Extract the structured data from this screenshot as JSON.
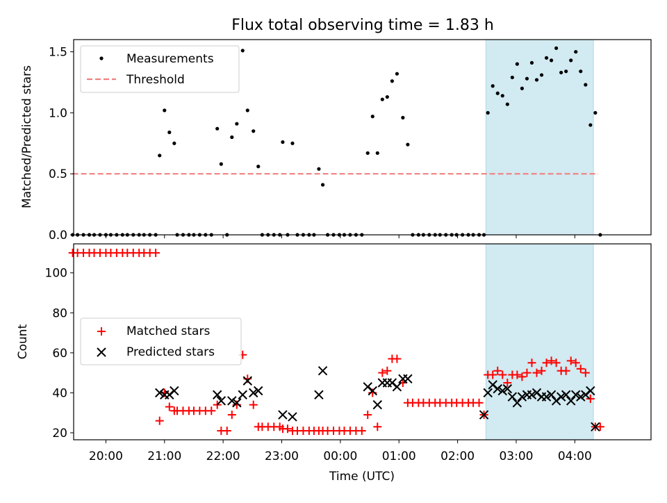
{
  "title": "Flux total observing time = 1.83 h",
  "chart_data": [
    {
      "type": "scatter",
      "ylabel": "Matched/Predicted stars",
      "xlabel": "",
      "xlim": [
        "19:27",
        "05:18"
      ],
      "ylim": [
        0,
        1.6
      ],
      "yticks": [
        0.0,
        0.5,
        1.0,
        1.5
      ],
      "ytick_labels": [
        "0.0",
        "0.5",
        "1.0",
        "1.5"
      ],
      "legend": {
        "position": "top-left",
        "entries": [
          "Measurements",
          "Threshold"
        ]
      },
      "threshold": {
        "name": "Threshold",
        "value": 0.5,
        "x_start": "19:26",
        "x_end": "04:24",
        "color": "#f08080"
      },
      "highlight": {
        "x_start": "02:29",
        "x_end": "04:19",
        "color": "#add8e6"
      },
      "series": [
        {
          "name": "Measurements",
          "color": "#000000",
          "points": [
            [
              "19:26",
              0
            ],
            [
              "19:31",
              0
            ],
            [
              "19:37",
              0
            ],
            [
              "19:43",
              0
            ],
            [
              "19:48",
              0
            ],
            [
              "19:54",
              0
            ],
            [
              "20:00",
              0
            ],
            [
              "20:05",
              0
            ],
            [
              "20:11",
              0
            ],
            [
              "20:17",
              0
            ],
            [
              "20:22",
              0
            ],
            [
              "20:28",
              0
            ],
            [
              "20:34",
              0
            ],
            [
              "20:39",
              0
            ],
            [
              "20:45",
              0
            ],
            [
              "20:51",
              0
            ],
            [
              "20:55",
              0.65
            ],
            [
              "21:00",
              1.02
            ],
            [
              "21:05",
              0.84
            ],
            [
              "21:10",
              0.75
            ],
            [
              "21:13",
              0
            ],
            [
              "21:19",
              0
            ],
            [
              "21:25",
              0
            ],
            [
              "21:30",
              0
            ],
            [
              "21:36",
              0
            ],
            [
              "21:42",
              0
            ],
            [
              "21:48",
              0
            ],
            [
              "21:54",
              0.87
            ],
            [
              "21:58",
              0.58
            ],
            [
              "22:04",
              0
            ],
            [
              "22:09",
              0.8
            ],
            [
              "22:14",
              0.91
            ],
            [
              "22:20",
              1.51
            ],
            [
              "22:25",
              1.02
            ],
            [
              "22:31",
              0.85
            ],
            [
              "22:36",
              0.56
            ],
            [
              "22:40",
              0
            ],
            [
              "22:46",
              0
            ],
            [
              "22:52",
              0
            ],
            [
              "22:58",
              0
            ],
            [
              "23:01",
              0.76
            ],
            [
              "23:06",
              0
            ],
            [
              "23:11",
              0.75
            ],
            [
              "23:16",
              0
            ],
            [
              "23:22",
              0
            ],
            [
              "23:28",
              0
            ],
            [
              "23:33",
              0
            ],
            [
              "23:38",
              0.54
            ],
            [
              "23:42",
              0.41
            ],
            [
              "23:47",
              0
            ],
            [
              "23:53",
              0
            ],
            [
              "23:59",
              0
            ],
            [
              "00:04",
              0
            ],
            [
              "00:10",
              0
            ],
            [
              "00:16",
              0
            ],
            [
              "00:22",
              0
            ],
            [
              "00:28",
              0.67
            ],
            [
              "00:33",
              0.97
            ],
            [
              "00:38",
              0.67
            ],
            [
              "00:43",
              1.11
            ],
            [
              "00:48",
              1.13
            ],
            [
              "00:53",
              1.26
            ],
            [
              "00:58",
              1.32
            ],
            [
              "01:04",
              0.96
            ],
            [
              "01:09",
              0.74
            ],
            [
              "01:14",
              0
            ],
            [
              "01:20",
              0
            ],
            [
              "01:25",
              0
            ],
            [
              "01:31",
              0
            ],
            [
              "01:37",
              0
            ],
            [
              "01:42",
              0
            ],
            [
              "01:48",
              0
            ],
            [
              "01:54",
              0
            ],
            [
              "01:59",
              0
            ],
            [
              "02:05",
              0
            ],
            [
              "02:11",
              0
            ],
            [
              "02:16",
              0
            ],
            [
              "02:22",
              0
            ],
            [
              "02:27",
              0
            ],
            [
              "02:31",
              1.0
            ],
            [
              "02:36",
              1.22
            ],
            [
              "02:41",
              1.16
            ],
            [
              "02:46",
              1.14
            ],
            [
              "02:51",
              1.07
            ],
            [
              "02:56",
              1.29
            ],
            [
              "03:01",
              1.4
            ],
            [
              "03:06",
              1.2
            ],
            [
              "03:11",
              1.28
            ],
            [
              "03:16",
              1.41
            ],
            [
              "03:21",
              1.27
            ],
            [
              "03:26",
              1.31
            ],
            [
              "03:31",
              1.45
            ],
            [
              "03:36",
              1.43
            ],
            [
              "03:41",
              1.53
            ],
            [
              "03:46",
              1.33
            ],
            [
              "03:51",
              1.34
            ],
            [
              "03:56",
              1.43
            ],
            [
              "04:01",
              1.5
            ],
            [
              "04:06",
              1.34
            ],
            [
              "04:11",
              1.23
            ],
            [
              "04:16",
              0.9
            ],
            [
              "04:21",
              1.0
            ],
            [
              "04:26",
              0
            ]
          ]
        }
      ]
    },
    {
      "type": "scatter",
      "ylabel": "Count",
      "xlabel": "Time (UTC)",
      "xlim": [
        "19:27",
        "05:18"
      ],
      "ylim": [
        16.5,
        114.5
      ],
      "yticks": [
        20,
        40,
        60,
        80,
        100
      ],
      "ytick_labels": [
        "20",
        "40",
        "60",
        "80",
        "100"
      ],
      "xticks": [
        "20:00",
        "21:00",
        "22:00",
        "23:00",
        "00:00",
        "01:00",
        "02:00",
        "03:00",
        "04:00"
      ],
      "legend": {
        "position": "center-left",
        "entries": [
          "Matched stars",
          "Predicted stars"
        ]
      },
      "highlight": {
        "x_start": "02:29",
        "x_end": "04:19",
        "color": "#add8e6"
      },
      "series": [
        {
          "name": "Matched stars",
          "marker": "+",
          "color": "#ff0000",
          "points": [
            [
              "19:26",
              110
            ],
            [
              "19:31",
              110
            ],
            [
              "19:37",
              110
            ],
            [
              "19:43",
              110
            ],
            [
              "19:48",
              110
            ],
            [
              "19:54",
              110
            ],
            [
              "20:00",
              110
            ],
            [
              "20:05",
              110
            ],
            [
              "20:11",
              110
            ],
            [
              "20:17",
              110
            ],
            [
              "20:22",
              110
            ],
            [
              "20:28",
              110
            ],
            [
              "20:34",
              110
            ],
            [
              "20:39",
              110
            ],
            [
              "20:45",
              110
            ],
            [
              "20:51",
              110
            ],
            [
              "20:55",
              26
            ],
            [
              "21:00",
              40
            ],
            [
              "21:05",
              33
            ],
            [
              "21:10",
              31
            ],
            [
              "21:13",
              31
            ],
            [
              "21:19",
              31
            ],
            [
              "21:25",
              31
            ],
            [
              "21:30",
              31
            ],
            [
              "21:36",
              31
            ],
            [
              "21:42",
              31
            ],
            [
              "21:48",
              31
            ],
            [
              "21:54",
              34
            ],
            [
              "21:58",
              21
            ],
            [
              "22:04",
              21
            ],
            [
              "22:09",
              29
            ],
            [
              "22:14",
              34
            ],
            [
              "22:20",
              59
            ],
            [
              "22:25",
              47
            ],
            [
              "22:31",
              34
            ],
            [
              "22:36",
              23
            ],
            [
              "22:40",
              23
            ],
            [
              "22:46",
              23
            ],
            [
              "22:52",
              23
            ],
            [
              "22:58",
              23
            ],
            [
              "23:01",
              22
            ],
            [
              "23:06",
              22
            ],
            [
              "23:11",
              21
            ],
            [
              "23:16",
              21
            ],
            [
              "23:22",
              21
            ],
            [
              "23:28",
              21
            ],
            [
              "23:33",
              21
            ],
            [
              "23:38",
              21
            ],
            [
              "23:42",
              21
            ],
            [
              "23:47",
              21
            ],
            [
              "23:53",
              21
            ],
            [
              "23:59",
              21
            ],
            [
              "00:04",
              21
            ],
            [
              "00:10",
              21
            ],
            [
              "00:16",
              21
            ],
            [
              "00:22",
              21
            ],
            [
              "00:28",
              29
            ],
            [
              "00:33",
              40
            ],
            [
              "00:38",
              23
            ],
            [
              "00:43",
              50
            ],
            [
              "00:48",
              51
            ],
            [
              "00:53",
              57
            ],
            [
              "00:58",
              57
            ],
            [
              "01:04",
              45
            ],
            [
              "01:09",
              35
            ],
            [
              "01:14",
              35
            ],
            [
              "01:20",
              35
            ],
            [
              "01:25",
              35
            ],
            [
              "01:31",
              35
            ],
            [
              "01:37",
              35
            ],
            [
              "01:42",
              35
            ],
            [
              "01:48",
              35
            ],
            [
              "01:54",
              35
            ],
            [
              "01:59",
              35
            ],
            [
              "02:05",
              35
            ],
            [
              "02:11",
              35
            ],
            [
              "02:16",
              35
            ],
            [
              "02:22",
              35
            ],
            [
              "02:27",
              29
            ],
            [
              "02:31",
              49
            ],
            [
              "02:36",
              49
            ],
            [
              "02:41",
              51
            ],
            [
              "02:46",
              49
            ],
            [
              "02:51",
              45
            ],
            [
              "02:56",
              49
            ],
            [
              "03:01",
              49
            ],
            [
              "03:06",
              48
            ],
            [
              "03:11",
              50
            ],
            [
              "03:16",
              55
            ],
            [
              "03:21",
              50
            ],
            [
              "03:26",
              51
            ],
            [
              "03:31",
              55
            ],
            [
              "03:36",
              56
            ],
            [
              "03:41",
              55
            ],
            [
              "03:46",
              51
            ],
            [
              "03:51",
              51
            ],
            [
              "03:56",
              56
            ],
            [
              "04:01",
              55
            ],
            [
              "04:06",
              52
            ],
            [
              "04:11",
              50
            ],
            [
              "04:16",
              37
            ],
            [
              "04:21",
              23
            ],
            [
              "04:26",
              23
            ]
          ]
        },
        {
          "name": "Predicted stars",
          "marker": "x",
          "color": "#000000",
          "points": [
            [
              "20:55",
              40
            ],
            [
              "21:00",
              39
            ],
            [
              "21:05",
              39
            ],
            [
              "21:10",
              41
            ],
            [
              "21:54",
              39
            ],
            [
              "21:58",
              36
            ],
            [
              "22:09",
              36
            ],
            [
              "22:14",
              35
            ],
            [
              "22:20",
              39
            ],
            [
              "22:25",
              46
            ],
            [
              "22:31",
              40
            ],
            [
              "22:36",
              41
            ],
            [
              "23:01",
              29
            ],
            [
              "23:11",
              28
            ],
            [
              "23:38",
              39
            ],
            [
              "23:42",
              51
            ],
            [
              "00:28",
              43
            ],
            [
              "00:33",
              41
            ],
            [
              "00:38",
              34
            ],
            [
              "00:43",
              45
            ],
            [
              "00:48",
              45
            ],
            [
              "00:53",
              45
            ],
            [
              "00:58",
              43
            ],
            [
              "01:04",
              47
            ],
            [
              "01:09",
              47
            ],
            [
              "02:27",
              29
            ],
            [
              "02:31",
              40
            ],
            [
              "02:36",
              44
            ],
            [
              "02:41",
              42
            ],
            [
              "02:46",
              41
            ],
            [
              "02:51",
              42
            ],
            [
              "02:56",
              38
            ],
            [
              "03:01",
              35
            ],
            [
              "03:06",
              38
            ],
            [
              "03:11",
              39
            ],
            [
              "03:16",
              39
            ],
            [
              "03:21",
              40
            ],
            [
              "03:26",
              38
            ],
            [
              "03:31",
              38
            ],
            [
              "03:36",
              39
            ],
            [
              "03:41",
              36
            ],
            [
              "03:46",
              38
            ],
            [
              "03:51",
              39
            ],
            [
              "03:56",
              36
            ],
            [
              "04:01",
              39
            ],
            [
              "04:06",
              38
            ],
            [
              "04:11",
              39
            ],
            [
              "04:16",
              41
            ],
            [
              "04:21",
              23
            ]
          ]
        }
      ]
    }
  ]
}
